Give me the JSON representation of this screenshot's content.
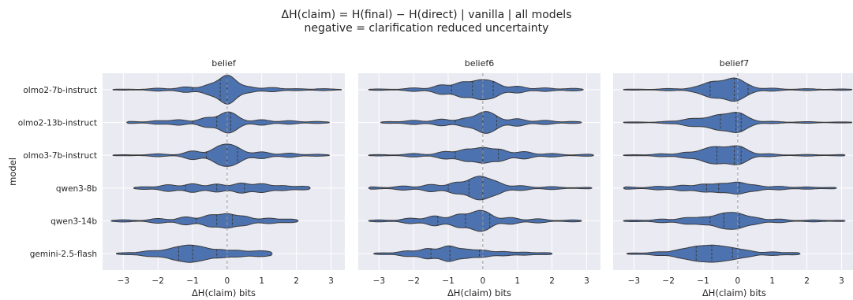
{
  "figure": {
    "title_line1": "ΔH(claim) = H(final) − H(direct)  |  vanilla  |  all models",
    "title_line2": "negative = clarification reduced uncertainty",
    "ylabel": "model",
    "xlabel": "ΔH(claim)  bits",
    "background_color": "#eaeaf2",
    "violin_color": "#4c72b0",
    "zero_line_color": "#999999"
  },
  "chart_data": {
    "type": "violin",
    "categories": [
      "olmo2-7b-instruct",
      "olmo2-13b-instruct",
      "olmo3-7b-instruct",
      "qwen3-8b",
      "qwen3-14b",
      "gemini-2.5-flash"
    ],
    "xlim": [
      -3.6,
      3.4
    ],
    "xticks": [
      -3,
      -2,
      -1,
      0,
      1,
      2,
      3
    ],
    "grid": true,
    "reference_line": 0,
    "panels": [
      {
        "title": "belief",
        "violins": [
          {
            "min": -3.3,
            "max": 3.3,
            "quartiles": [
              -1.0,
              -0.2,
              0.0
            ],
            "peaks": [
              [
                -3.0,
                0.02
              ],
              [
                -2.0,
                0.08
              ],
              [
                -1.2,
                0.16
              ],
              [
                -0.5,
                0.28
              ],
              [
                -0.05,
                0.52
              ],
              [
                0.1,
                0.42
              ],
              [
                0.6,
                0.16
              ],
              [
                1.3,
                0.12
              ],
              [
                2.0,
                0.05
              ],
              [
                2.8,
                0.05
              ]
            ]
          },
          {
            "min": -2.9,
            "max": 2.95,
            "quartiles": [
              -1.0,
              -0.3,
              0.1
            ],
            "peaks": [
              [
                -2.8,
                0.05
              ],
              [
                -2.0,
                0.1
              ],
              [
                -1.4,
                0.16
              ],
              [
                -0.6,
                0.28
              ],
              [
                -0.05,
                0.46
              ],
              [
                0.2,
                0.3
              ],
              [
                1.0,
                0.16
              ],
              [
                1.8,
                0.1
              ],
              [
                2.6,
                0.05
              ]
            ]
          },
          {
            "min": -3.3,
            "max": 2.95,
            "quartiles": [
              -0.6,
              0.0,
              0.3
            ],
            "peaks": [
              [
                -3.0,
                0.02
              ],
              [
                -2.0,
                0.08
              ],
              [
                -1.0,
                0.26
              ],
              [
                -0.3,
                0.34
              ],
              [
                0.0,
                0.44
              ],
              [
                0.3,
                0.32
              ],
              [
                1.0,
                0.2
              ],
              [
                1.8,
                0.12
              ],
              [
                2.6,
                0.05
              ]
            ]
          },
          {
            "min": -2.7,
            "max": 2.4,
            "quartiles": [
              -1.2,
              -0.3,
              0.5
            ],
            "peaks": [
              [
                -2.4,
                0.07
              ],
              [
                -1.7,
                0.2
              ],
              [
                -1.0,
                0.26
              ],
              [
                -0.3,
                0.24
              ],
              [
                0.4,
                0.3
              ],
              [
                1.0,
                0.26
              ],
              [
                1.6,
                0.14
              ],
              [
                2.2,
                0.1
              ]
            ]
          },
          {
            "min": -3.35,
            "max": 2.05,
            "quartiles": [
              -0.9,
              -0.3,
              0.15
            ],
            "peaks": [
              [
                -3.0,
                0.06
              ],
              [
                -2.0,
                0.14
              ],
              [
                -1.2,
                0.24
              ],
              [
                -0.5,
                0.34
              ],
              [
                0.0,
                0.4
              ],
              [
                0.5,
                0.26
              ],
              [
                1.2,
                0.16
              ],
              [
                1.8,
                0.1
              ]
            ]
          },
          {
            "min": -3.2,
            "max": 1.3,
            "quartiles": [
              -1.4,
              -1.0,
              -0.3
            ],
            "peaks": [
              [
                -2.9,
                0.05
              ],
              [
                -2.3,
                0.14
              ],
              [
                -1.9,
                0.12
              ],
              [
                -1.5,
                0.3
              ],
              [
                -1.1,
                0.42
              ],
              [
                -0.7,
                0.32
              ],
              [
                -0.2,
                0.22
              ],
              [
                0.3,
                0.18
              ],
              [
                0.8,
                0.1
              ],
              [
                1.1,
                0.12
              ]
            ]
          }
        ]
      },
      {
        "title": "belief6",
        "violins": [
          {
            "min": -3.3,
            "max": 2.9,
            "quartiles": [
              -0.9,
              -0.3,
              0.3
            ],
            "peaks": [
              [
                -3.0,
                0.03
              ],
              [
                -2.0,
                0.1
              ],
              [
                -1.2,
                0.28
              ],
              [
                -0.6,
                0.44
              ],
              [
                -0.1,
                0.5
              ],
              [
                0.3,
                0.42
              ],
              [
                1.0,
                0.2
              ],
              [
                1.8,
                0.1
              ],
              [
                2.6,
                0.07
              ]
            ]
          },
          {
            "min": -2.95,
            "max": 2.85,
            "quartiles": [
              -0.8,
              0.0,
              0.4
            ],
            "peaks": [
              [
                -2.7,
                0.04
              ],
              [
                -2.0,
                0.12
              ],
              [
                -1.2,
                0.2
              ],
              [
                -0.5,
                0.24
              ],
              [
                0.0,
                0.5
              ],
              [
                0.3,
                0.34
              ],
              [
                1.0,
                0.22
              ],
              [
                1.8,
                0.12
              ],
              [
                2.6,
                0.05
              ]
            ]
          },
          {
            "min": -3.3,
            "max": 3.2,
            "quartiles": [
              -0.8,
              0.0,
              0.45
            ],
            "peaks": [
              [
                -3.0,
                0.03
              ],
              [
                -2.0,
                0.1
              ],
              [
                -1.1,
                0.22
              ],
              [
                -0.5,
                0.34
              ],
              [
                0.0,
                0.44
              ],
              [
                0.5,
                0.34
              ],
              [
                1.2,
                0.22
              ],
              [
                2.0,
                0.1
              ],
              [
                3.0,
                0.05
              ]
            ]
          },
          {
            "min": -3.3,
            "max": 3.15,
            "quartiles": [
              -1.0,
              -0.4,
              0.0
            ],
            "peaks": [
              [
                -3.2,
                0.06
              ],
              [
                -2.3,
                0.12
              ],
              [
                -1.5,
                0.22
              ],
              [
                -0.8,
                0.32
              ],
              [
                -0.3,
                0.4
              ],
              [
                0.0,
                0.5
              ],
              [
                0.4,
                0.32
              ],
              [
                1.1,
                0.14
              ],
              [
                2.0,
                0.08
              ],
              [
                3.0,
                0.03
              ]
            ]
          },
          {
            "min": -3.3,
            "max": 2.85,
            "quartiles": [
              -1.3,
              -0.5,
              0.2
            ],
            "peaks": [
              [
                -3.0,
                0.05
              ],
              [
                -2.1,
                0.16
              ],
              [
                -1.4,
                0.3
              ],
              [
                -0.7,
                0.38
              ],
              [
                -0.2,
                0.42
              ],
              [
                0.1,
                0.4
              ],
              [
                0.8,
                0.2
              ],
              [
                1.6,
                0.12
              ],
              [
                2.6,
                0.05
              ]
            ]
          },
          {
            "min": -3.15,
            "max": 2.0,
            "quartiles": [
              -1.5,
              -0.95,
              -0.1
            ],
            "peaks": [
              [
                -2.9,
                0.04
              ],
              [
                -2.2,
                0.16
              ],
              [
                -1.6,
                0.3
              ],
              [
                -1.0,
                0.46
              ],
              [
                -0.5,
                0.24
              ],
              [
                0.0,
                0.2
              ],
              [
                0.6,
                0.12
              ],
              [
                1.2,
                0.08
              ],
              [
                1.8,
                0.05
              ]
            ]
          }
        ]
      },
      {
        "title": "belief7",
        "violins": [
          {
            "min": -3.3,
            "max": 3.3,
            "quartiles": [
              -0.8,
              -0.1,
              0.3
            ],
            "peaks": [
              [
                -3.0,
                0.02
              ],
              [
                -2.0,
                0.06
              ],
              [
                -1.2,
                0.12
              ],
              [
                -0.8,
                0.36
              ],
              [
                -0.5,
                0.24
              ],
              [
                -0.2,
                0.34
              ],
              [
                0.0,
                0.38
              ],
              [
                0.3,
                0.16
              ],
              [
                1.0,
                0.08
              ],
              [
                2.0,
                0.05
              ],
              [
                3.0,
                0.03
              ]
            ]
          },
          {
            "min": -3.3,
            "max": 3.3,
            "quartiles": [
              -0.5,
              -0.05,
              0.1
            ],
            "peaks": [
              [
                -3.0,
                0.02
              ],
              [
                -2.0,
                0.06
              ],
              [
                -1.4,
                0.2
              ],
              [
                -1.0,
                0.16
              ],
              [
                -0.6,
                0.34
              ],
              [
                -0.3,
                0.22
              ],
              [
                0.0,
                0.48
              ],
              [
                0.3,
                0.14
              ],
              [
                1.0,
                0.06
              ],
              [
                2.0,
                0.04
              ],
              [
                3.0,
                0.02
              ]
            ]
          },
          {
            "min": -3.3,
            "max": 3.1,
            "quartiles": [
              -0.6,
              -0.1,
              0.1
            ],
            "peaks": [
              [
                -3.0,
                0.02
              ],
              [
                -2.2,
                0.08
              ],
              [
                -1.5,
                0.16
              ],
              [
                -1.0,
                0.22
              ],
              [
                -0.7,
                0.34
              ],
              [
                -0.4,
                0.26
              ],
              [
                -0.05,
                0.4
              ],
              [
                0.2,
                0.22
              ],
              [
                0.9,
                0.08
              ],
              [
                2.0,
                0.04
              ],
              [
                3.0,
                0.03
              ]
            ]
          },
          {
            "min": -3.3,
            "max": 2.85,
            "quartiles": [
              -0.9,
              -0.55,
              0.05
            ],
            "peaks": [
              [
                -3.2,
                0.06
              ],
              [
                -2.3,
                0.1
              ],
              [
                -1.6,
                0.16
              ],
              [
                -1.0,
                0.22
              ],
              [
                -0.5,
                0.24
              ],
              [
                0.0,
                0.34
              ],
              [
                0.5,
                0.16
              ],
              [
                1.2,
                0.1
              ],
              [
                2.0,
                0.06
              ],
              [
                2.7,
                0.03
              ]
            ]
          },
          {
            "min": -3.3,
            "max": 3.1,
            "quartiles": [
              -0.8,
              -0.4,
              0.05
            ],
            "peaks": [
              [
                -3.0,
                0.04
              ],
              [
                -2.2,
                0.1
              ],
              [
                -1.5,
                0.18
              ],
              [
                -1.0,
                0.2
              ],
              [
                -0.5,
                0.32
              ],
              [
                -0.2,
                0.24
              ],
              [
                0.05,
                0.3
              ],
              [
                0.5,
                0.18
              ],
              [
                1.2,
                0.1
              ],
              [
                2.2,
                0.05
              ],
              [
                3.0,
                0.03
              ]
            ]
          },
          {
            "min": -3.2,
            "max": 1.8,
            "quartiles": [
              -1.2,
              -0.75,
              -0.15
            ],
            "peaks": [
              [
                -3.0,
                0.03
              ],
              [
                -2.3,
                0.1
              ],
              [
                -1.7,
                0.2
              ],
              [
                -1.3,
                0.28
              ],
              [
                -1.0,
                0.26
              ],
              [
                -0.7,
                0.32
              ],
              [
                -0.4,
                0.24
              ],
              [
                -0.1,
                0.22
              ],
              [
                0.3,
                0.16
              ],
              [
                1.0,
                0.1
              ],
              [
                1.6,
                0.06
              ]
            ]
          }
        ]
      }
    ]
  }
}
